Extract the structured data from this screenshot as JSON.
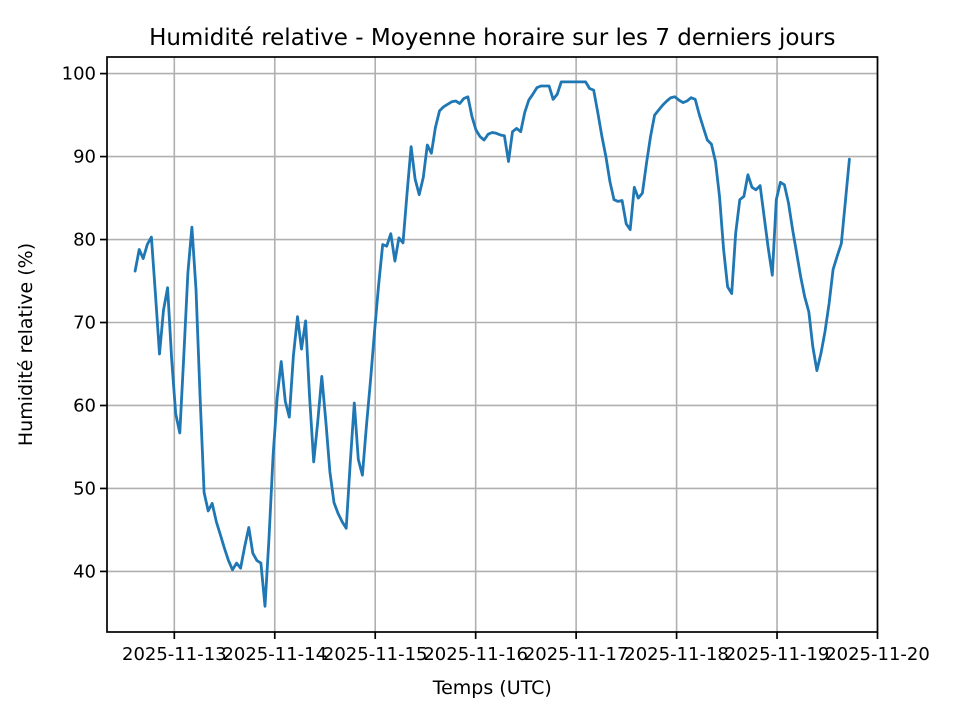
{
  "chart_data": {
    "type": "line",
    "title": "Humidité relative - Moyenne horaire sur les 7 derniers jours",
    "xlabel": "Temps (UTC)",
    "ylabel": "Humidité relative (%)",
    "x_tick_labels": [
      "2025-11-13",
      "2025-11-14",
      "2025-11-15",
      "2025-11-16",
      "2025-11-17",
      "2025-11-18",
      "2025-11-19",
      "2025-11-20"
    ],
    "x_tick_days": [
      13,
      14,
      15,
      16,
      17,
      18,
      19,
      20
    ],
    "y_ticks": [
      40,
      50,
      60,
      70,
      80,
      90,
      100
    ],
    "xlim_days": [
      12.33,
      20.0
    ],
    "ylim": [
      32.7,
      102.0
    ],
    "grid": true,
    "legend_position": "none",
    "colors": {
      "line": "#1f77b4",
      "grid": "#b0b0b0",
      "spine": "#000000",
      "background": "#ffffff",
      "text": "#000000"
    },
    "series": [
      {
        "x_start_day": 12.61,
        "x_end_day": 19.72,
        "interval_hours": 1,
        "color": "#1f77b4",
        "values": [
          76.2,
          78.8,
          77.7,
          79.4,
          80.3,
          73.5,
          66.2,
          71.5,
          74.2,
          65.5,
          59.0,
          56.7,
          66.0,
          76.0,
          81.5,
          74.0,
          61.0,
          49.5,
          47.3,
          48.2,
          46.0,
          44.4,
          42.8,
          41.3,
          40.2,
          41.0,
          40.4,
          43.0,
          45.3,
          42.2,
          41.3,
          41.0,
          35.8,
          44.0,
          54.0,
          61.0,
          65.3,
          60.5,
          58.6,
          66.0,
          70.7,
          66.8,
          70.2,
          61.0,
          53.2,
          58.0,
          63.5,
          58.0,
          52.0,
          48.3,
          47.0,
          46.0,
          45.2,
          53.0,
          60.3,
          53.5,
          51.6,
          57.5,
          63.0,
          69.0,
          74.5,
          79.4,
          79.2,
          80.7,
          77.4,
          80.2,
          79.6,
          85.5,
          91.2,
          87.3,
          85.4,
          87.5,
          91.4,
          90.4,
          93.5,
          95.5,
          96.0,
          96.3,
          96.6,
          96.7,
          96.4,
          97.0,
          97.2,
          94.8,
          93.2,
          92.4,
          92.0,
          92.7,
          92.9,
          92.8,
          92.6,
          92.5,
          89.4,
          93.0,
          93.4,
          93.0,
          95.3,
          96.8,
          97.5,
          98.3,
          98.5,
          98.5,
          98.5,
          96.9,
          97.5,
          99.0,
          99.0,
          99.0,
          99.0,
          99.0,
          99.0,
          99.0,
          98.2,
          98.0,
          95.3,
          92.5,
          90.0,
          87.0,
          84.8,
          84.6,
          84.7,
          81.9,
          81.2,
          86.3,
          85.0,
          85.6,
          89.2,
          92.4,
          95.0,
          95.6,
          96.2,
          96.7,
          97.1,
          97.2,
          96.8,
          96.5,
          96.7,
          97.1,
          96.9,
          95.1,
          93.5,
          92.0,
          91.5,
          89.4,
          85.2,
          78.8,
          74.3,
          73.5,
          80.8,
          84.8,
          85.2,
          87.8,
          86.3,
          86.0,
          86.5,
          82.8,
          79.0,
          75.7,
          84.8,
          86.9,
          86.6,
          84.4,
          81.2,
          78.4,
          75.5,
          73.1,
          71.3,
          67.1,
          64.2,
          66.3,
          68.9,
          72.3,
          76.4,
          78.0,
          79.5,
          84.5,
          89.7
        ]
      }
    ]
  }
}
